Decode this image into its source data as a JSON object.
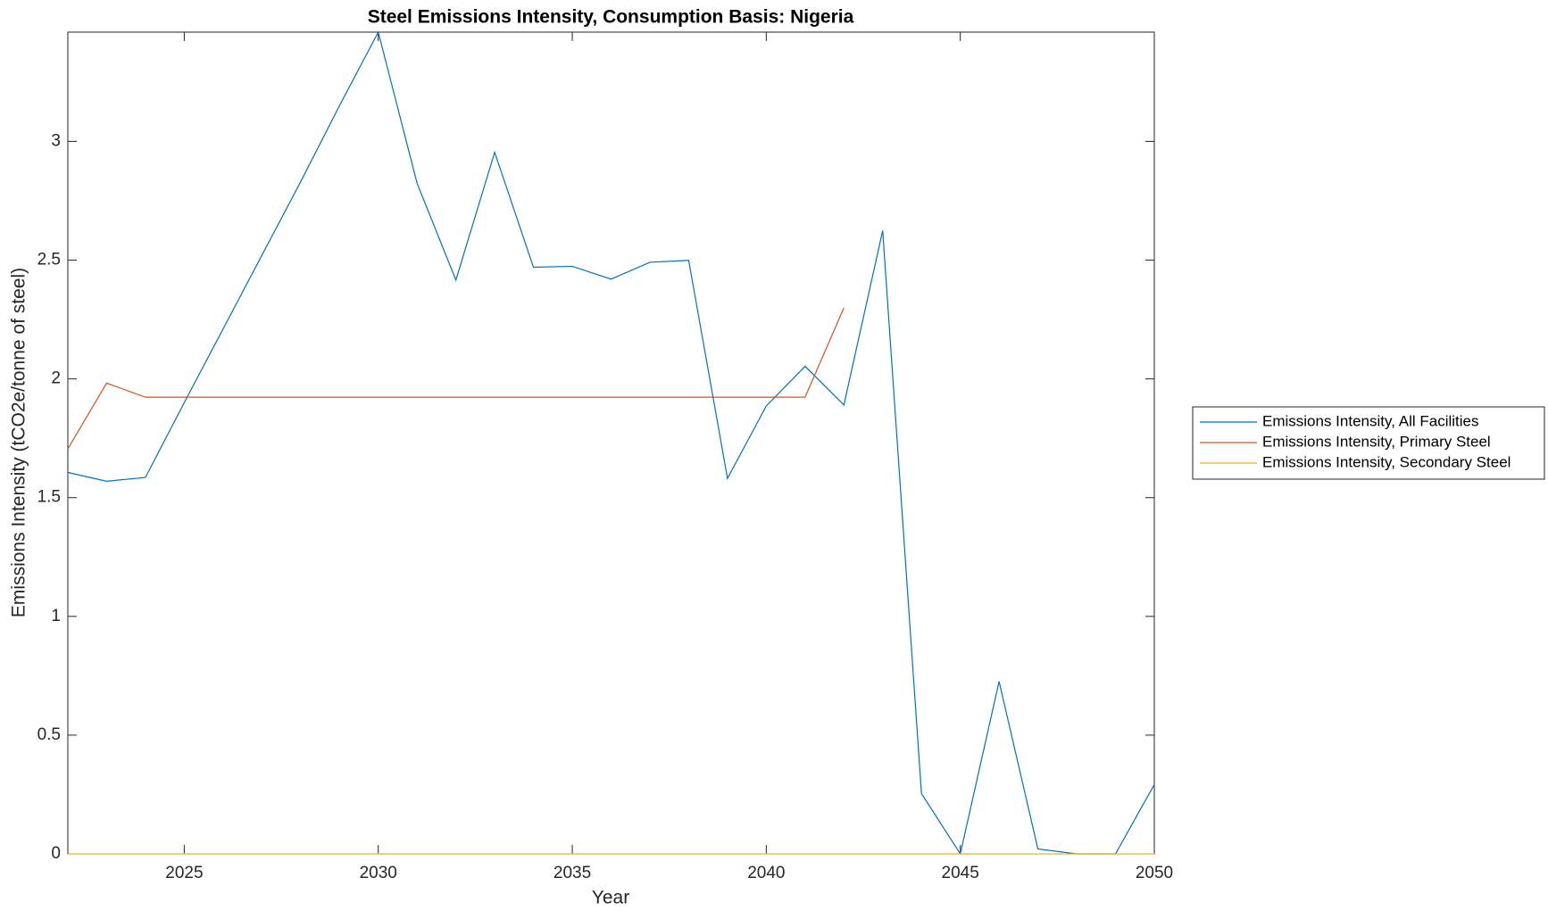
{
  "chart_data": {
    "type": "line",
    "title": "Steel Emissions Intensity, Consumption Basis: Nigeria",
    "x_label": "Year",
    "y_label": "Emissions Intensity (tCO2e/tonne of steel)",
    "x": [
      2022,
      2023,
      2024,
      2025,
      2026,
      2027,
      2028,
      2029,
      2030,
      2031,
      2032,
      2033,
      2034,
      2035,
      2036,
      2037,
      2038,
      2039,
      2040,
      2041,
      2042,
      2043,
      2044,
      2045,
      2046,
      2047,
      2048,
      2049,
      2050
    ],
    "series": [
      {
        "name": "Emissions Intensity, All Facilities",
        "color": "#0072bd",
        "values": [
          1.606,
          1.569,
          1.585,
          1.9,
          2.21,
          2.52,
          2.83,
          3.15,
          3.46,
          2.824,
          2.416,
          2.954,
          2.47,
          2.474,
          2.42,
          2.491,
          2.499,
          1.581,
          1.886,
          2.053,
          1.89,
          2.624,
          0.254,
          0,
          0.726,
          0.021,
          0,
          0,
          0.292
        ]
      },
      {
        "name": "Emissions Intensity, Primary Steel",
        "color": "#d95319",
        "values": [
          1.706,
          1.982,
          1.923,
          1.923,
          1.923,
          1.923,
          1.923,
          1.923,
          1.923,
          1.923,
          1.923,
          1.923,
          1.923,
          1.923,
          1.923,
          1.923,
          1.923,
          1.923,
          1.923,
          1.923,
          2.299,
          null,
          null,
          null,
          null,
          null,
          null,
          null,
          null
        ]
      },
      {
        "name": "Emissions Intensity, Secondary Steel",
        "color": "#edb120",
        "values": [
          0,
          0,
          0,
          0,
          0,
          0,
          0,
          0,
          0,
          0,
          0,
          0,
          0,
          0,
          0,
          0,
          0,
          0,
          0,
          0,
          0,
          0,
          0,
          0,
          0,
          0,
          0,
          0,
          0
        ]
      }
    ],
    "xlim": [
      2022,
      2050
    ],
    "xticks": [
      2025,
      2030,
      2035,
      2040,
      2045,
      2050
    ],
    "ylim": [
      0,
      3.46
    ],
    "yticks": [
      0,
      0.5,
      1,
      1.5,
      2,
      2.5,
      3
    ],
    "legend": "east-outside"
  }
}
